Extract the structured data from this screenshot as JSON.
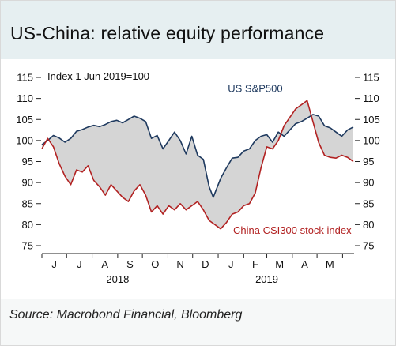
{
  "title": "US-China: relative equity performance",
  "source": "Source: Macrobond Financial, Bloomberg",
  "chart_data": {
    "type": "line",
    "subtitle": "Index 1 Jun 2019=100",
    "ylim": [
      75,
      115
    ],
    "y_ticks": [
      75,
      80,
      85,
      90,
      95,
      100,
      105,
      110,
      115
    ],
    "x_range": [
      "2018-06-01",
      "2019-06-15"
    ],
    "x_month_labels": [
      {
        "label": "J",
        "month": "2018-06"
      },
      {
        "label": "J",
        "month": "2018-07"
      },
      {
        "label": "A",
        "month": "2018-08"
      },
      {
        "label": "S",
        "month": "2018-09"
      },
      {
        "label": "O",
        "month": "2018-10"
      },
      {
        "label": "N",
        "month": "2018-11"
      },
      {
        "label": "D",
        "month": "2018-12"
      },
      {
        "label": "J",
        "month": "2019-01"
      },
      {
        "label": "F",
        "month": "2019-02"
      },
      {
        "label": "M",
        "month": "2019-03"
      },
      {
        "label": "A",
        "month": "2019-04"
      },
      {
        "label": "M",
        "month": "2019-05"
      }
    ],
    "x_year_labels": [
      {
        "label": "2018",
        "month": "2018-09"
      },
      {
        "label": "2019",
        "month": "2019-03"
      }
    ],
    "fill_between": true,
    "fill_color": "#d5d5d5",
    "grid": false,
    "series": [
      {
        "name": "US S&P500",
        "color": "#1f3a5f",
        "label_anchor": {
          "date": "2019-02-15",
          "value": 111.5
        },
        "points": [
          [
            "2018-06-01",
            99.0
          ],
          [
            "2018-06-08",
            100.0
          ],
          [
            "2018-06-15",
            101.2
          ],
          [
            "2018-06-22",
            100.6
          ],
          [
            "2018-06-29",
            99.6
          ],
          [
            "2018-07-06",
            100.5
          ],
          [
            "2018-07-13",
            102.2
          ],
          [
            "2018-07-20",
            102.6
          ],
          [
            "2018-07-27",
            103.2
          ],
          [
            "2018-08-03",
            103.6
          ],
          [
            "2018-08-10",
            103.3
          ],
          [
            "2018-08-17",
            103.8
          ],
          [
            "2018-08-24",
            104.5
          ],
          [
            "2018-08-31",
            104.8
          ],
          [
            "2018-09-07",
            104.2
          ],
          [
            "2018-09-14",
            105.0
          ],
          [
            "2018-09-21",
            105.8
          ],
          [
            "2018-09-28",
            105.3
          ],
          [
            "2018-10-05",
            104.5
          ],
          [
            "2018-10-12",
            100.5
          ],
          [
            "2018-10-19",
            101.2
          ],
          [
            "2018-10-26",
            98.0
          ],
          [
            "2018-11-02",
            100.0
          ],
          [
            "2018-11-09",
            102.0
          ],
          [
            "2018-11-16",
            100.0
          ],
          [
            "2018-11-23",
            96.8
          ],
          [
            "2018-11-30",
            101.0
          ],
          [
            "2018-12-07",
            96.5
          ],
          [
            "2018-12-14",
            95.5
          ],
          [
            "2018-12-21",
            89.0
          ],
          [
            "2018-12-26",
            86.5
          ],
          [
            "2019-01-04",
            91.0
          ],
          [
            "2019-01-11",
            93.5
          ],
          [
            "2019-01-18",
            95.8
          ],
          [
            "2019-01-25",
            96.0
          ],
          [
            "2019-02-01",
            97.5
          ],
          [
            "2019-02-08",
            98.0
          ],
          [
            "2019-02-15",
            100.0
          ],
          [
            "2019-02-22",
            101.0
          ],
          [
            "2019-03-01",
            101.4
          ],
          [
            "2019-03-08",
            99.6
          ],
          [
            "2019-03-15",
            102.0
          ],
          [
            "2019-03-22",
            101.0
          ],
          [
            "2019-03-29",
            102.5
          ],
          [
            "2019-04-05",
            104.0
          ],
          [
            "2019-04-12",
            104.5
          ],
          [
            "2019-04-19",
            105.3
          ],
          [
            "2019-04-26",
            106.2
          ],
          [
            "2019-05-03",
            105.8
          ],
          [
            "2019-05-10",
            103.5
          ],
          [
            "2019-05-17",
            103.0
          ],
          [
            "2019-05-24",
            102.0
          ],
          [
            "2019-05-31",
            101.0
          ],
          [
            "2019-06-07",
            102.5
          ],
          [
            "2019-06-14",
            103.2
          ]
        ]
      },
      {
        "name": "China CSI300 stock index",
        "color": "#b22222",
        "label_anchor": {
          "date": "2019-04-01",
          "value": 77.8
        },
        "points": [
          [
            "2018-06-01",
            98.0
          ],
          [
            "2018-06-08",
            100.5
          ],
          [
            "2018-06-15",
            98.5
          ],
          [
            "2018-06-22",
            94.5
          ],
          [
            "2018-06-29",
            91.5
          ],
          [
            "2018-07-06",
            89.5
          ],
          [
            "2018-07-13",
            93.0
          ],
          [
            "2018-07-20",
            92.5
          ],
          [
            "2018-07-27",
            94.0
          ],
          [
            "2018-08-03",
            90.5
          ],
          [
            "2018-08-10",
            89.0
          ],
          [
            "2018-08-17",
            87.0
          ],
          [
            "2018-08-24",
            89.5
          ],
          [
            "2018-08-31",
            88.0
          ],
          [
            "2018-09-07",
            86.5
          ],
          [
            "2018-09-14",
            85.5
          ],
          [
            "2018-09-21",
            88.0
          ],
          [
            "2018-09-28",
            89.5
          ],
          [
            "2018-10-05",
            87.0
          ],
          [
            "2018-10-12",
            83.0
          ],
          [
            "2018-10-19",
            84.5
          ],
          [
            "2018-10-26",
            82.5
          ],
          [
            "2018-11-02",
            84.5
          ],
          [
            "2018-11-09",
            83.5
          ],
          [
            "2018-11-16",
            85.0
          ],
          [
            "2018-11-23",
            83.5
          ],
          [
            "2018-11-30",
            84.5
          ],
          [
            "2018-12-07",
            85.5
          ],
          [
            "2018-12-14",
            83.5
          ],
          [
            "2018-12-21",
            81.0
          ],
          [
            "2018-12-28",
            80.0
          ],
          [
            "2019-01-04",
            79.0
          ],
          [
            "2019-01-11",
            80.5
          ],
          [
            "2019-01-18",
            82.5
          ],
          [
            "2019-01-25",
            83.0
          ],
          [
            "2019-02-01",
            84.5
          ],
          [
            "2019-02-08",
            85.0
          ],
          [
            "2019-02-15",
            87.5
          ],
          [
            "2019-02-22",
            93.5
          ],
          [
            "2019-03-01",
            98.5
          ],
          [
            "2019-03-08",
            98.0
          ],
          [
            "2019-03-15",
            100.0
          ],
          [
            "2019-03-22",
            103.5
          ],
          [
            "2019-03-29",
            105.5
          ],
          [
            "2019-04-05",
            107.5
          ],
          [
            "2019-04-12",
            108.5
          ],
          [
            "2019-04-19",
            109.5
          ],
          [
            "2019-04-26",
            104.5
          ],
          [
            "2019-05-03",
            99.5
          ],
          [
            "2019-05-10",
            96.5
          ],
          [
            "2019-05-17",
            96.0
          ],
          [
            "2019-05-24",
            95.8
          ],
          [
            "2019-05-31",
            96.5
          ],
          [
            "2019-06-07",
            96.0
          ],
          [
            "2019-06-14",
            95.0
          ]
        ]
      }
    ]
  }
}
